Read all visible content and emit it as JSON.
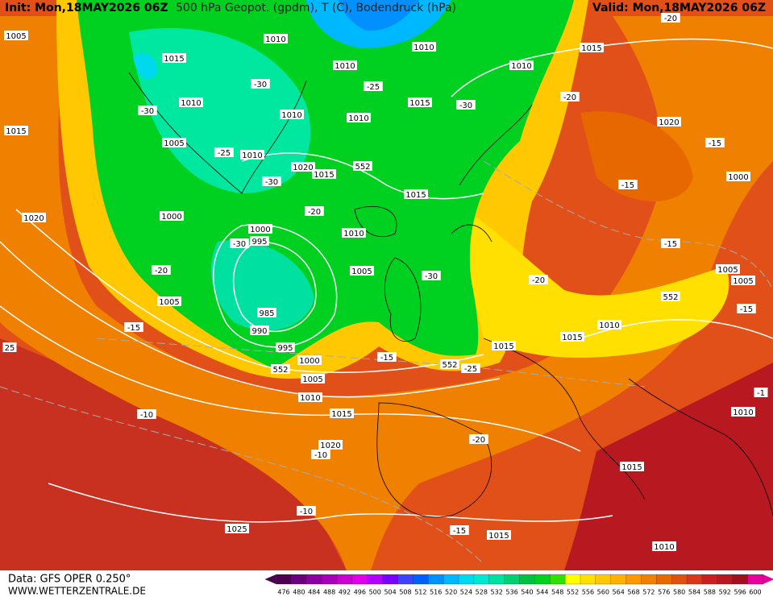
{
  "header": {
    "init": "Init: Mon,18MAY2026 06Z",
    "title": "500 hPa Geopot. (gpdm), T (C), Bodendruck (hPa)",
    "valid": "Valid: Mon,18MAY2026 06Z"
  },
  "footer": {
    "data": "Data: GFS OPER 0.250°",
    "site": "WWW.WETTERZENTRALE.DE"
  },
  "colorbar": {
    "labels": [
      476,
      480,
      484,
      488,
      492,
      496,
      500,
      504,
      508,
      512,
      516,
      520,
      524,
      528,
      532,
      536,
      540,
      544,
      548,
      552,
      556,
      560,
      564,
      568,
      572,
      576,
      580,
      584,
      588,
      592,
      596,
      600
    ],
    "colors": [
      "#4b0050",
      "#6a0080",
      "#8a00a0",
      "#a800b8",
      "#c800d0",
      "#e000e8",
      "#b000ff",
      "#7800ff",
      "#4040ff",
      "#0060ff",
      "#0090ff",
      "#00b8ff",
      "#00d8f0",
      "#00e8d0",
      "#00e0a0",
      "#00d070",
      "#00c040",
      "#00d020",
      "#30e000",
      "#ffff00",
      "#ffe000",
      "#ffc800",
      "#ffb000",
      "#ff9800",
      "#f08000",
      "#e86800",
      "#e05010",
      "#d83818",
      "#c82020",
      "#b81820",
      "#a01020",
      "#e8009a"
    ]
  },
  "map": {
    "labels": [
      1005,
      1015,
      1020,
      1010,
      1015,
      1010,
      1010,
      1010,
      1015,
      -20,
      -30,
      -25,
      -30,
      1010,
      1010,
      1010,
      1015,
      -30,
      -20,
      1020,
      1005,
      -25,
      1010,
      1020,
      1015,
      552,
      -30,
      -15,
      1000,
      -15,
      1015,
      -20,
      1000,
      1000,
      995,
      -30,
      1010,
      -15,
      -20,
      1005,
      -30,
      -20,
      1005,
      1005,
      552,
      1005,
      -15,
      985,
      990,
      995,
      -15,
      1015,
      1010,
      1015,
      1000,
      552,
      -15,
      552,
      -25,
      1005,
      1010,
      1015,
      -10,
      -20,
      1020,
      -10,
      -10,
      1015,
      1010,
      1025,
      -15,
      1015,
      1010,
      25,
      -1
    ]
  }
}
